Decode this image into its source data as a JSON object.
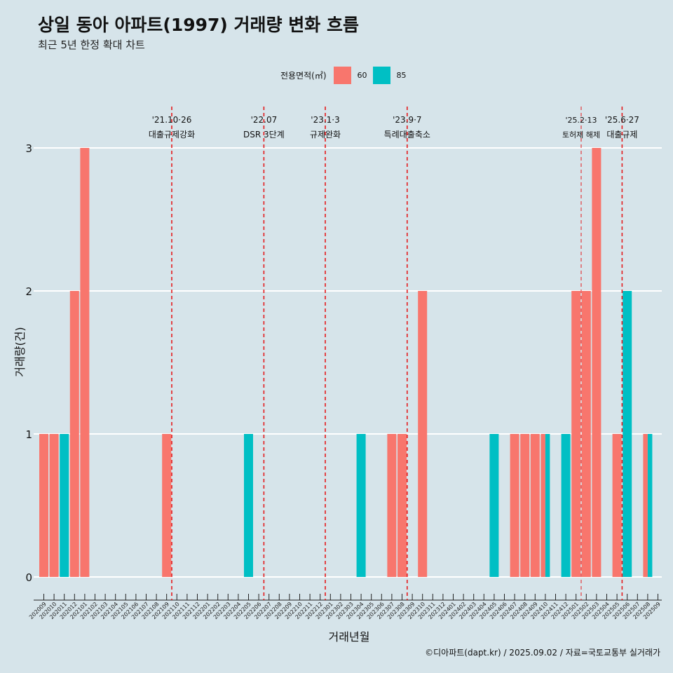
{
  "title": "상일 동아 아파트(1997) 거래량 변화 흐름",
  "subtitle": "최근 5년 한정 확대 차트",
  "caption": "©디아파트(dapt.kr) / 2025.09.02 / 자료=국토교통부 실거래가",
  "legend": {
    "title": "전용면적(㎡)",
    "items": [
      {
        "label": "60",
        "color": "#f8766d"
      },
      {
        "label": "85",
        "color": "#00bfc4"
      }
    ]
  },
  "chart_data": {
    "type": "bar",
    "xlabel": "거래년월",
    "ylabel": "거래량(건)",
    "ylim": [
      0,
      3
    ],
    "yticks": [
      0,
      1,
      2,
      3
    ],
    "categories": [
      "202009",
      "202010",
      "202011",
      "202012",
      "202101",
      "202102",
      "202103",
      "202104",
      "202105",
      "202106",
      "202107",
      "202108",
      "202109",
      "202110",
      "202111",
      "202112",
      "202201",
      "202202",
      "202203",
      "202204",
      "202205",
      "202206",
      "202207",
      "202208",
      "202209",
      "202210",
      "202211",
      "202212",
      "202301",
      "202302",
      "202303",
      "202304",
      "202305",
      "202306",
      "202307",
      "202308",
      "202309",
      "202310",
      "202311",
      "202312",
      "202401",
      "202402",
      "202403",
      "202404",
      "202405",
      "202406",
      "202407",
      "202408",
      "202409",
      "202410",
      "202411",
      "202412",
      "202501",
      "202502",
      "202503",
      "202504",
      "202505",
      "202506",
      "202507",
      "202508",
      "202509"
    ],
    "series": [
      {
        "name": "60",
        "color": "#f8766d",
        "values": [
          1,
          1,
          0,
          2,
          3,
          0,
          0,
          0,
          0,
          0,
          0,
          0,
          1,
          0,
          0,
          0,
          0,
          0,
          0,
          0,
          0,
          0,
          0,
          0,
          0,
          0,
          0,
          0,
          0,
          0,
          0,
          0,
          0,
          0,
          1,
          1,
          0,
          2,
          0,
          0,
          0,
          0,
          0,
          0,
          0,
          0,
          1,
          1,
          1,
          1,
          0,
          0,
          2,
          2,
          3,
          0,
          1,
          0,
          0,
          1,
          0
        ]
      },
      {
        "name": "85",
        "color": "#00bfc4",
        "values": [
          0,
          0,
          1,
          0,
          0,
          0,
          0,
          0,
          0,
          0,
          0,
          0,
          0,
          0,
          0,
          0,
          0,
          0,
          0,
          0,
          1,
          0,
          0,
          0,
          0,
          0,
          0,
          0,
          0,
          0,
          0,
          1,
          0,
          0,
          0,
          0,
          0,
          0,
          0,
          0,
          0,
          0,
          0,
          0,
          1,
          0,
          0,
          0,
          0,
          1,
          0,
          1,
          0,
          0,
          0,
          0,
          0,
          2,
          0,
          1,
          0
        ]
      }
    ],
    "annotations": [
      {
        "date_label": "'21.10·26",
        "text": "대출규제강화",
        "at": "202110"
      },
      {
        "date_label": "'22.07",
        "text": "DSR 3단계",
        "at": "202207"
      },
      {
        "date_label": "'23.1·3",
        "text": "규제완화",
        "at": "202301"
      },
      {
        "date_label": "'23.9·7",
        "text": "특례대출축소",
        "at": "202309"
      },
      {
        "date_label": "'25.2·13",
        "text": "토허제 해제",
        "at": "202502"
      },
      {
        "date_label": "'25.6·27",
        "text": "대출규제",
        "at": "202506"
      }
    ]
  }
}
